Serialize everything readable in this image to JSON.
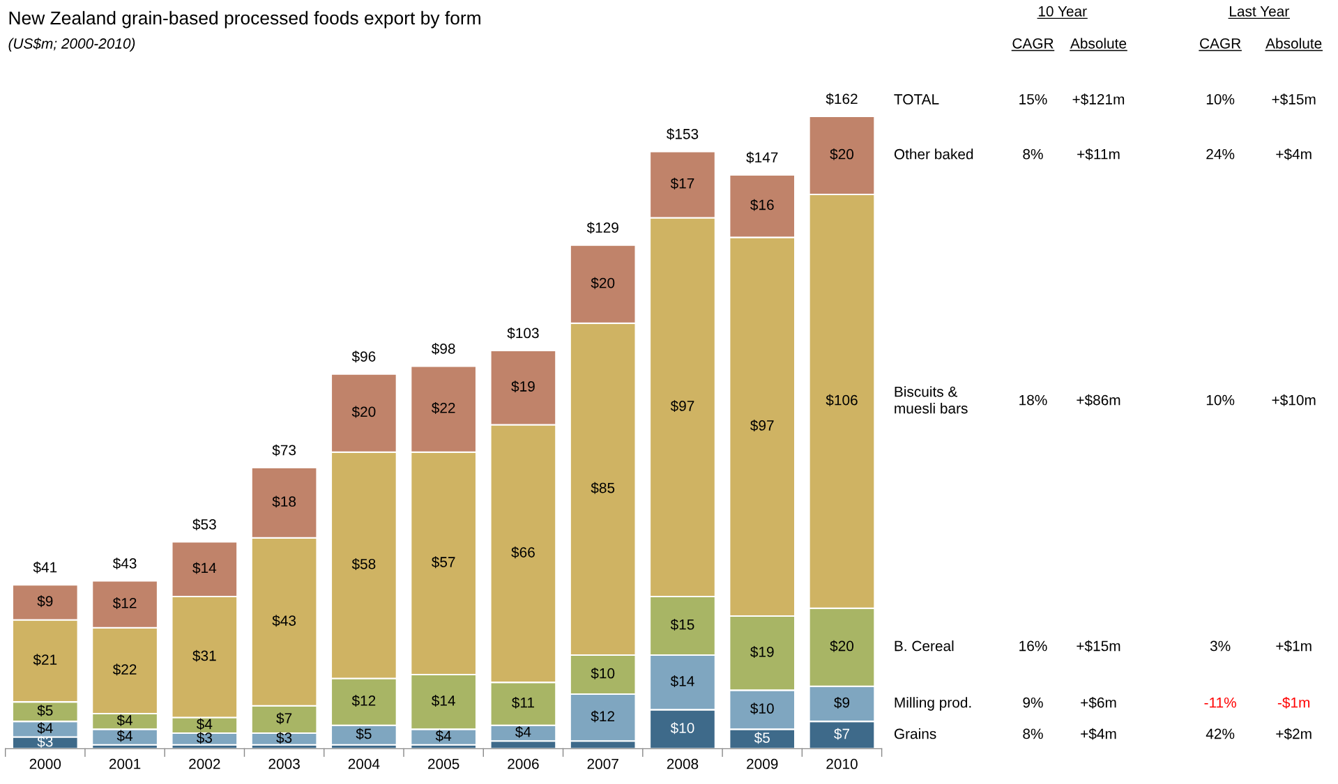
{
  "chart_data": {
    "type": "bar",
    "stacked": true,
    "title": "New Zealand grain-based processed foods export by form",
    "subtitle": "(US$m; 2000-2010)",
    "categories": [
      "2000",
      "2001",
      "2002",
      "2003",
      "2004",
      "2005",
      "2006",
      "2007",
      "2008",
      "2009",
      "2010"
    ],
    "series": [
      {
        "name": "Grains",
        "color": "#3e6a8a",
        "values": [
          3,
          1,
          1,
          1,
          1,
          1,
          2,
          2,
          10,
          5,
          7
        ],
        "value_labels": [
          "$3",
          null,
          null,
          null,
          null,
          null,
          null,
          null,
          "$10",
          "$5",
          "$7"
        ]
      },
      {
        "name": "Milling prod.",
        "color": "#7fa6c0",
        "values": [
          4,
          4,
          3,
          3,
          5,
          4,
          4,
          12,
          14,
          10,
          9
        ],
        "value_labels": [
          "$4",
          "$4",
          "$3",
          "$3",
          "$5",
          "$4",
          "$4",
          "$12",
          "$14",
          "$10",
          "$9"
        ]
      },
      {
        "name": "B. Cereal",
        "color": "#a8b565",
        "values": [
          5,
          4,
          4,
          7,
          12,
          14,
          11,
          10,
          15,
          19,
          20
        ],
        "value_labels": [
          "$5",
          "$4",
          "$4",
          "$7",
          "$12",
          "$14",
          "$11",
          "$10",
          "$15",
          "$19",
          "$20"
        ]
      },
      {
        "name": "Biscuits &\nmuesli bars",
        "color": "#cfb363",
        "values": [
          21,
          22,
          31,
          43,
          58,
          57,
          66,
          85,
          97,
          97,
          106
        ],
        "value_labels": [
          "$21",
          "$22",
          "$31",
          "$43",
          "$58",
          "$57",
          "$66",
          "$85",
          "$97",
          "$97",
          "$106"
        ]
      },
      {
        "name": "Other baked",
        "color": "#c0836a",
        "values": [
          9,
          12,
          14,
          18,
          20,
          22,
          19,
          20,
          17,
          16,
          20
        ],
        "value_labels": [
          "$9",
          "$12",
          "$14",
          "$18",
          "$20",
          "$22",
          "$19",
          "$20",
          "$17",
          "$16",
          "$20"
        ]
      }
    ],
    "totals": [
      "$41",
      "$43",
      "$53",
      "$73",
      "$96",
      "$98",
      "$103",
      "$129",
      "$153",
      "$147",
      "$162"
    ],
    "annotations": [
      "10 Year",
      "Last Year",
      "CAGR",
      "Absolute",
      "CAGR",
      "Absolute",
      "TOTAL",
      "15%",
      "+$121m",
      "10%",
      "+$15m",
      "8%",
      "+$4m",
      "42%",
      "+$2m",
      "9%",
      "+$6m",
      "-11%",
      "-$1m",
      "16%",
      "+$15m",
      "3%",
      "+$1m",
      "18%",
      "+$86m",
      "10%",
      "+$10m",
      "8%",
      "+$11m",
      "24%",
      "+$4m"
    ],
    "legend": false,
    "grid": false
  }
}
